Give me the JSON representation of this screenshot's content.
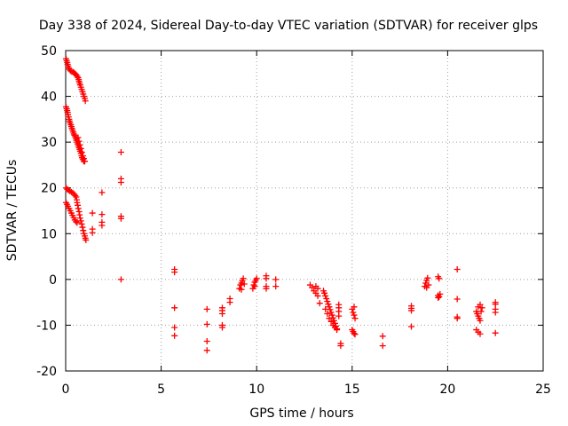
{
  "chart_data": {
    "type": "scatter",
    "title": "Day 338 of 2024, Sidereal Day-to-day VTEC variation (SDTVAR) for receiver glps",
    "xlabel": "GPS time / hours",
    "ylabel": "SDTVAR / TECUs",
    "xlim": [
      0,
      25
    ],
    "ylim": [
      -20,
      50
    ],
    "xticks": [
      0,
      5,
      10,
      15,
      20,
      25
    ],
    "yticks": [
      -20,
      -10,
      0,
      10,
      20,
      30,
      40,
      50
    ],
    "grid": true,
    "marker": "+",
    "marker_color": "#ff0000",
    "series": [
      {
        "name": "SDTVAR",
        "points": [
          [
            0.02,
            48.2
          ],
          [
            0.05,
            47.8
          ],
          [
            0.08,
            47.4
          ],
          [
            0.1,
            47.0
          ],
          [
            0.13,
            46.6
          ],
          [
            0.16,
            46.2
          ],
          [
            0.2,
            45.9
          ],
          [
            0.25,
            45.6
          ],
          [
            0.32,
            45.4
          ],
          [
            0.4,
            45.3
          ],
          [
            0.45,
            45.1
          ],
          [
            0.5,
            44.9
          ],
          [
            0.55,
            44.7
          ],
          [
            0.6,
            44.4
          ],
          [
            0.65,
            44.1
          ],
          [
            0.68,
            43.7
          ],
          [
            0.7,
            43.3
          ],
          [
            0.73,
            42.9
          ],
          [
            0.76,
            42.5
          ],
          [
            0.8,
            42.0
          ],
          [
            0.84,
            41.5
          ],
          [
            0.88,
            41.0
          ],
          [
            0.92,
            40.5
          ],
          [
            0.96,
            40.0
          ],
          [
            1.0,
            39.5
          ],
          [
            1.03,
            39.0
          ],
          [
            0.02,
            37.7
          ],
          [
            0.05,
            37.3
          ],
          [
            0.08,
            36.9
          ],
          [
            0.1,
            36.5
          ],
          [
            0.12,
            36.0
          ],
          [
            0.15,
            35.5
          ],
          [
            0.18,
            35.0
          ],
          [
            0.2,
            34.6
          ],
          [
            0.23,
            34.2
          ],
          [
            0.27,
            33.8
          ],
          [
            0.3,
            33.4
          ],
          [
            0.33,
            33.0
          ],
          [
            0.36,
            32.6
          ],
          [
            0.4,
            32.2
          ],
          [
            0.43,
            31.8
          ],
          [
            0.46,
            31.5
          ],
          [
            0.5,
            31.2
          ],
          [
            0.53,
            30.8
          ],
          [
            0.56,
            30.4
          ],
          [
            0.6,
            30.0
          ],
          [
            0.63,
            29.6
          ],
          [
            0.66,
            29.2
          ],
          [
            0.7,
            28.8
          ],
          [
            0.73,
            28.4
          ],
          [
            0.76,
            28.0
          ],
          [
            0.8,
            27.5
          ],
          [
            0.83,
            27.0
          ],
          [
            0.86,
            26.6
          ],
          [
            0.9,
            26.2
          ],
          [
            0.95,
            25.8
          ],
          [
            0.65,
            31.0
          ],
          [
            0.7,
            30.2
          ],
          [
            0.75,
            29.4
          ],
          [
            0.8,
            28.6
          ],
          [
            0.85,
            27.8
          ],
          [
            0.9,
            27.0
          ],
          [
            0.95,
            26.4
          ],
          [
            1.0,
            25.8
          ],
          [
            0.02,
            20.0
          ],
          [
            0.08,
            19.7
          ],
          [
            0.15,
            19.5
          ],
          [
            0.22,
            19.3
          ],
          [
            0.3,
            19.1
          ],
          [
            0.38,
            18.9
          ],
          [
            0.45,
            18.6
          ],
          [
            0.5,
            18.3
          ],
          [
            0.55,
            18.0
          ],
          [
            0.58,
            17.4
          ],
          [
            0.6,
            16.8
          ],
          [
            0.63,
            16.2
          ],
          [
            0.66,
            15.5
          ],
          [
            0.7,
            14.8
          ],
          [
            0.73,
            14.1
          ],
          [
            0.76,
            13.4
          ],
          [
            0.8,
            12.8
          ],
          [
            0.84,
            12.1
          ],
          [
            0.88,
            11.4
          ],
          [
            0.92,
            10.7
          ],
          [
            0.96,
            10.0
          ],
          [
            1.0,
            9.5
          ],
          [
            1.03,
            9.0
          ],
          [
            1.06,
            8.6
          ],
          [
            0.02,
            16.8
          ],
          [
            0.07,
            16.4
          ],
          [
            0.12,
            16.0
          ],
          [
            0.18,
            15.5
          ],
          [
            0.24,
            15.0
          ],
          [
            0.3,
            14.5
          ],
          [
            0.36,
            14.0
          ],
          [
            0.42,
            13.5
          ],
          [
            0.48,
            13.0
          ],
          [
            0.54,
            12.6
          ],
          [
            0.6,
            12.4
          ],
          [
            1.4,
            14.5
          ],
          [
            1.4,
            11.0
          ],
          [
            1.4,
            10.2
          ],
          [
            1.9,
            19.0
          ],
          [
            1.9,
            14.2
          ],
          [
            1.9,
            12.5
          ],
          [
            1.9,
            11.8
          ],
          [
            2.9,
            27.8
          ],
          [
            2.9,
            22.0
          ],
          [
            2.9,
            21.2
          ],
          [
            2.9,
            13.8
          ],
          [
            2.9,
            13.3
          ],
          [
            2.9,
            0.0
          ],
          [
            5.7,
            2.2
          ],
          [
            5.7,
            1.6
          ],
          [
            5.7,
            -6.2
          ],
          [
            5.7,
            -10.5
          ],
          [
            5.7,
            -12.3
          ],
          [
            7.4,
            -6.5
          ],
          [
            7.4,
            -9.8
          ],
          [
            7.4,
            -13.5
          ],
          [
            7.4,
            -15.5
          ],
          [
            8.2,
            -6.2
          ],
          [
            8.2,
            -6.8
          ],
          [
            8.2,
            -7.5
          ],
          [
            8.2,
            -10.0
          ],
          [
            8.2,
            -10.5
          ],
          [
            8.6,
            -4.2
          ],
          [
            8.6,
            -5.0
          ],
          [
            9.1,
            -2.0
          ],
          [
            9.15,
            -1.2
          ],
          [
            9.2,
            -0.8
          ],
          [
            9.25,
            -0.3
          ],
          [
            9.3,
            0.2
          ],
          [
            9.35,
            -1.0
          ],
          [
            9.2,
            -2.2
          ],
          [
            9.8,
            -2.0
          ],
          [
            9.85,
            -1.2
          ],
          [
            9.9,
            -0.6
          ],
          [
            9.95,
            -0.2
          ],
          [
            10.0,
            0.2
          ],
          [
            9.9,
            -1.5
          ],
          [
            10.5,
            0.8
          ],
          [
            10.5,
            0.2
          ],
          [
            10.5,
            -1.5
          ],
          [
            10.5,
            -2.0
          ],
          [
            11.0,
            0.0
          ],
          [
            11.0,
            -1.5
          ],
          [
            12.8,
            -1.2
          ],
          [
            12.9,
            -1.8
          ],
          [
            13.0,
            -2.5
          ],
          [
            13.1,
            -3.0
          ],
          [
            13.2,
            -3.6
          ],
          [
            13.3,
            -5.2
          ],
          [
            13.1,
            -1.5
          ],
          [
            13.2,
            -2.0
          ],
          [
            13.5,
            -2.5
          ],
          [
            13.55,
            -3.0
          ],
          [
            13.6,
            -3.6
          ],
          [
            13.65,
            -4.2
          ],
          [
            13.7,
            -4.8
          ],
          [
            13.75,
            -5.4
          ],
          [
            13.8,
            -6.0
          ],
          [
            13.85,
            -6.6
          ],
          [
            13.9,
            -7.2
          ],
          [
            13.95,
            -7.8
          ],
          [
            14.0,
            -8.4
          ],
          [
            14.05,
            -9.0
          ],
          [
            14.1,
            -9.6
          ],
          [
            14.15,
            -10.2
          ],
          [
            14.2,
            -10.8
          ],
          [
            13.6,
            -6.5
          ],
          [
            13.7,
            -7.5
          ],
          [
            13.8,
            -8.5
          ],
          [
            13.9,
            -9.2
          ],
          [
            14.0,
            -10.0
          ],
          [
            14.1,
            -10.5
          ],
          [
            14.2,
            -11.0
          ],
          [
            14.3,
            -5.5
          ],
          [
            14.3,
            -6.2
          ],
          [
            14.3,
            -7.0
          ],
          [
            14.3,
            -8.0
          ],
          [
            14.4,
            -14.0
          ],
          [
            14.4,
            -14.5
          ],
          [
            15.0,
            -6.5
          ],
          [
            15.05,
            -7.2
          ],
          [
            15.1,
            -7.8
          ],
          [
            15.15,
            -8.5
          ],
          [
            15.1,
            -6.0
          ],
          [
            15.0,
            -11.0
          ],
          [
            15.05,
            -11.4
          ],
          [
            15.1,
            -11.8
          ],
          [
            15.15,
            -12.0
          ],
          [
            16.6,
            -12.4
          ],
          [
            16.6,
            -14.5
          ],
          [
            18.1,
            -5.8
          ],
          [
            18.1,
            -6.3
          ],
          [
            18.1,
            -6.8
          ],
          [
            18.1,
            -10.3
          ],
          [
            18.8,
            -1.5
          ],
          [
            18.85,
            -0.8
          ],
          [
            18.9,
            -0.2
          ],
          [
            18.95,
            0.3
          ],
          [
            19.0,
            -1.2
          ],
          [
            18.9,
            -1.8
          ],
          [
            19.5,
            0.6
          ],
          [
            19.55,
            0.2
          ],
          [
            19.5,
            -3.5
          ],
          [
            19.55,
            -3.8
          ],
          [
            19.6,
            -3.2
          ],
          [
            19.5,
            -4.0
          ],
          [
            20.5,
            2.2
          ],
          [
            20.5,
            -4.3
          ],
          [
            20.5,
            -8.2
          ],
          [
            20.5,
            -8.5
          ],
          [
            21.5,
            -7.0
          ],
          [
            21.55,
            -7.5
          ],
          [
            21.6,
            -8.0
          ],
          [
            21.65,
            -8.5
          ],
          [
            21.7,
            -9.0
          ],
          [
            21.5,
            -11.0
          ],
          [
            21.6,
            -11.5
          ],
          [
            21.7,
            -11.9
          ],
          [
            21.6,
            -6.0
          ],
          [
            21.7,
            -5.5
          ],
          [
            21.8,
            -6.2
          ],
          [
            21.75,
            -7.0
          ],
          [
            22.5,
            -5.0
          ],
          [
            22.5,
            -5.4
          ],
          [
            22.5,
            -6.5
          ],
          [
            22.5,
            -7.2
          ],
          [
            22.5,
            -11.7
          ]
        ]
      }
    ]
  }
}
